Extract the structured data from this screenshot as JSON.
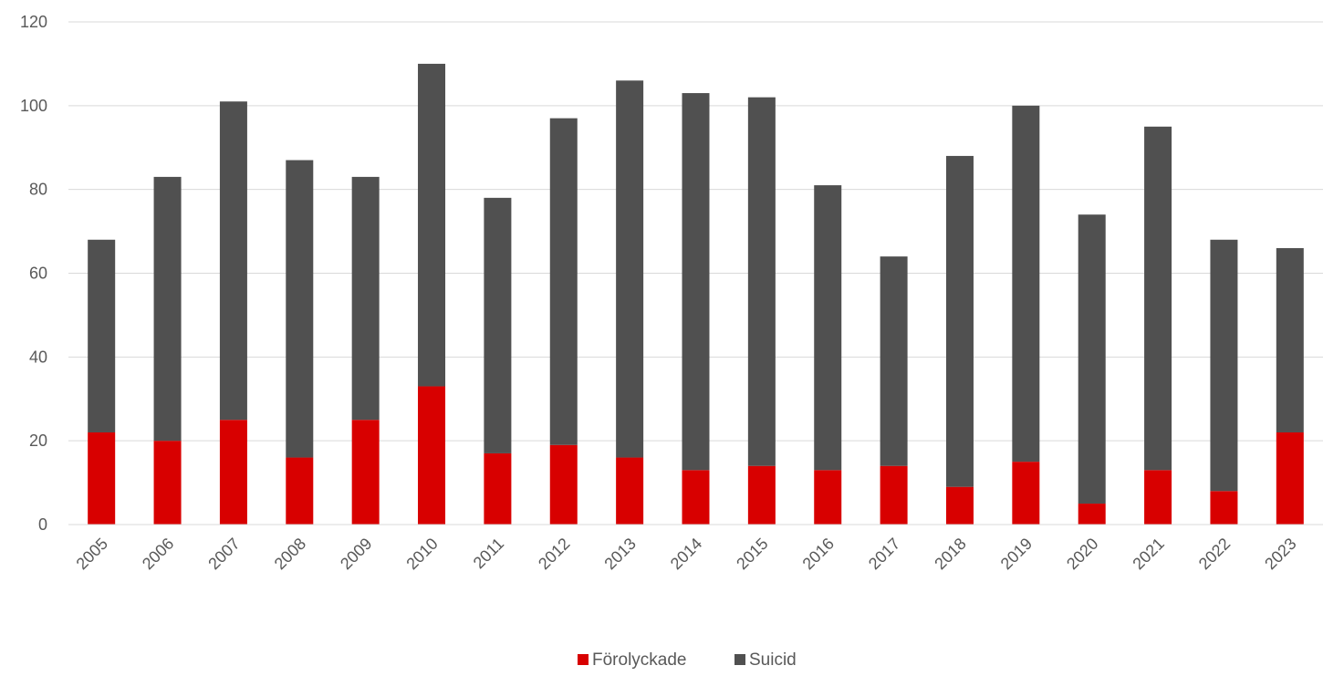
{
  "chart_data": {
    "type": "bar",
    "stacked": true,
    "title": "",
    "xlabel": "",
    "ylabel": "",
    "ylim": [
      0,
      120
    ],
    "yticks": [
      0,
      20,
      40,
      60,
      80,
      100,
      120
    ],
    "grid": true,
    "legend_position": "bottom",
    "categories": [
      "2005",
      "2006",
      "2007",
      "2008",
      "2009",
      "2010",
      "2011",
      "2012",
      "2013",
      "2014",
      "2015",
      "2016",
      "2017",
      "2018",
      "2019",
      "2020",
      "2021",
      "2022",
      "2023"
    ],
    "series": [
      {
        "name": "Förolyckade",
        "color": "#d80000",
        "values": [
          22,
          20,
          25,
          16,
          25,
          33,
          17,
          19,
          16,
          13,
          14,
          13,
          14,
          9,
          15,
          5,
          13,
          8,
          22
        ]
      },
      {
        "name": "Suicid",
        "color": "#505050",
        "values": [
          46,
          63,
          76,
          71,
          58,
          77,
          61,
          78,
          90,
          90,
          88,
          68,
          50,
          79,
          85,
          69,
          82,
          60,
          44
        ]
      }
    ]
  }
}
